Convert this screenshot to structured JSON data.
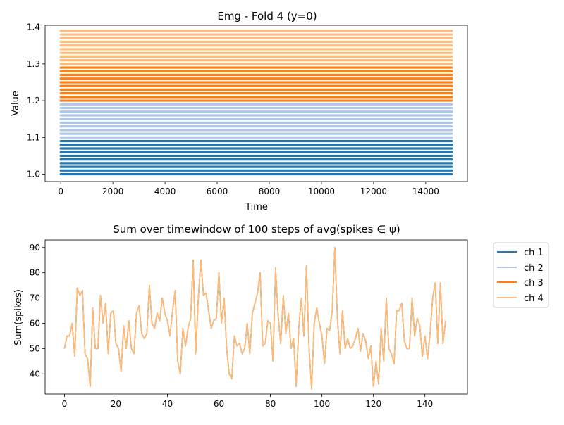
{
  "chart_data": [
    {
      "type": "scatter",
      "title": "Emg - Fold 4 (y=0)",
      "xlabel": "Time",
      "ylabel": "Value",
      "xlim": [
        -600,
        15600
      ],
      "ylim": [
        0.98,
        1.405
      ],
      "x_range": [
        0,
        15000
      ],
      "xticks": [
        0,
        2000,
        4000,
        6000,
        8000,
        10000,
        12000,
        14000
      ],
      "yticks": [
        1.0,
        1.1,
        1.2,
        1.3,
        1.4
      ],
      "ytick_labels": [
        "1.0",
        "1.1",
        "1.2",
        "1.3",
        "1.4"
      ],
      "levels": [
        1.0,
        1.01,
        1.02,
        1.03,
        1.04,
        1.05,
        1.06,
        1.07,
        1.08,
        1.09,
        1.1,
        1.11,
        1.12,
        1.13,
        1.14,
        1.15,
        1.16,
        1.17,
        1.18,
        1.19,
        1.2,
        1.21,
        1.22,
        1.23,
        1.24,
        1.25,
        1.26,
        1.27,
        1.28,
        1.29,
        1.3,
        1.31,
        1.32,
        1.33,
        1.34,
        1.35,
        1.36,
        1.37,
        1.38,
        1.39
      ],
      "series": [
        {
          "color": "#1f77b4",
          "levels_from": 0,
          "levels_to": 9
        },
        {
          "color": "#aec7e8",
          "levels_from": 10,
          "levels_to": 19
        },
        {
          "color": "#ff7f0e",
          "levels_from": 20,
          "levels_to": 29
        },
        {
          "color": "#ffbb78",
          "levels_from": 30,
          "levels_to": 39
        }
      ]
    },
    {
      "type": "line",
      "title": "Sum over timewindow of 100 steps of avg(spikes ∈ ψ)",
      "xlabel": "",
      "ylabel": "Sum(spikes)",
      "xlim": [
        -7.5,
        156.5
      ],
      "ylim": [
        32,
        93
      ],
      "xticks": [
        0,
        20,
        40,
        60,
        80,
        100,
        120,
        140
      ],
      "yticks": [
        40,
        50,
        60,
        70,
        80,
        90
      ],
      "legend_placement": "outside-right",
      "legend": [
        "ch 1",
        "ch 2",
        "ch 3",
        "ch 4"
      ],
      "colors": [
        "#1f77b4",
        "#aec7e8",
        "#ff7f0e",
        "#ffbb78"
      ],
      "values": [
        50,
        55,
        55,
        60,
        47,
        74,
        71,
        73,
        48,
        46,
        35,
        66,
        50,
        50,
        71,
        60,
        68,
        48,
        64,
        65,
        52,
        50,
        41,
        59,
        50,
        61,
        50,
        48,
        64,
        67,
        56,
        54,
        56,
        75,
        60,
        58,
        64,
        61,
        70,
        64,
        61,
        55,
        65,
        73,
        45,
        40,
        58,
        51,
        58,
        62,
        85,
        48,
        70,
        85,
        71,
        72,
        65,
        58,
        61,
        62,
        80,
        60,
        70,
        50,
        40,
        38,
        55,
        51,
        52,
        48,
        50,
        60,
        48,
        64,
        68,
        72,
        80,
        51,
        52,
        61,
        60,
        45,
        82,
        63,
        52,
        71,
        56,
        64,
        50,
        54,
        35,
        58,
        70,
        55,
        83,
        50,
        34,
        60,
        66,
        60,
        55,
        44,
        58,
        57,
        65,
        90,
        62,
        48,
        65,
        50,
        54,
        50,
        51,
        54,
        58,
        49,
        56,
        53,
        46,
        51,
        35,
        45,
        36,
        58,
        45,
        70,
        50,
        48,
        44,
        65,
        65,
        68,
        53,
        50,
        50,
        70,
        55,
        62,
        59,
        47,
        55,
        46,
        56,
        70,
        76,
        52,
        76,
        52,
        61
      ],
      "series": [
        {
          "name": "ch 1",
          "color": "#1f77b4",
          "visible_part": "hidden-under-ch4"
        },
        {
          "name": "ch 2",
          "color": "#aec7e8",
          "visible_part": "hidden-under-ch4"
        },
        {
          "name": "ch 3",
          "color": "#ff7f0e",
          "visible_part": "hidden-under-ch4"
        },
        {
          "name": "ch 4",
          "color": "#ffbb78",
          "visible_part": "top"
        }
      ]
    }
  ]
}
